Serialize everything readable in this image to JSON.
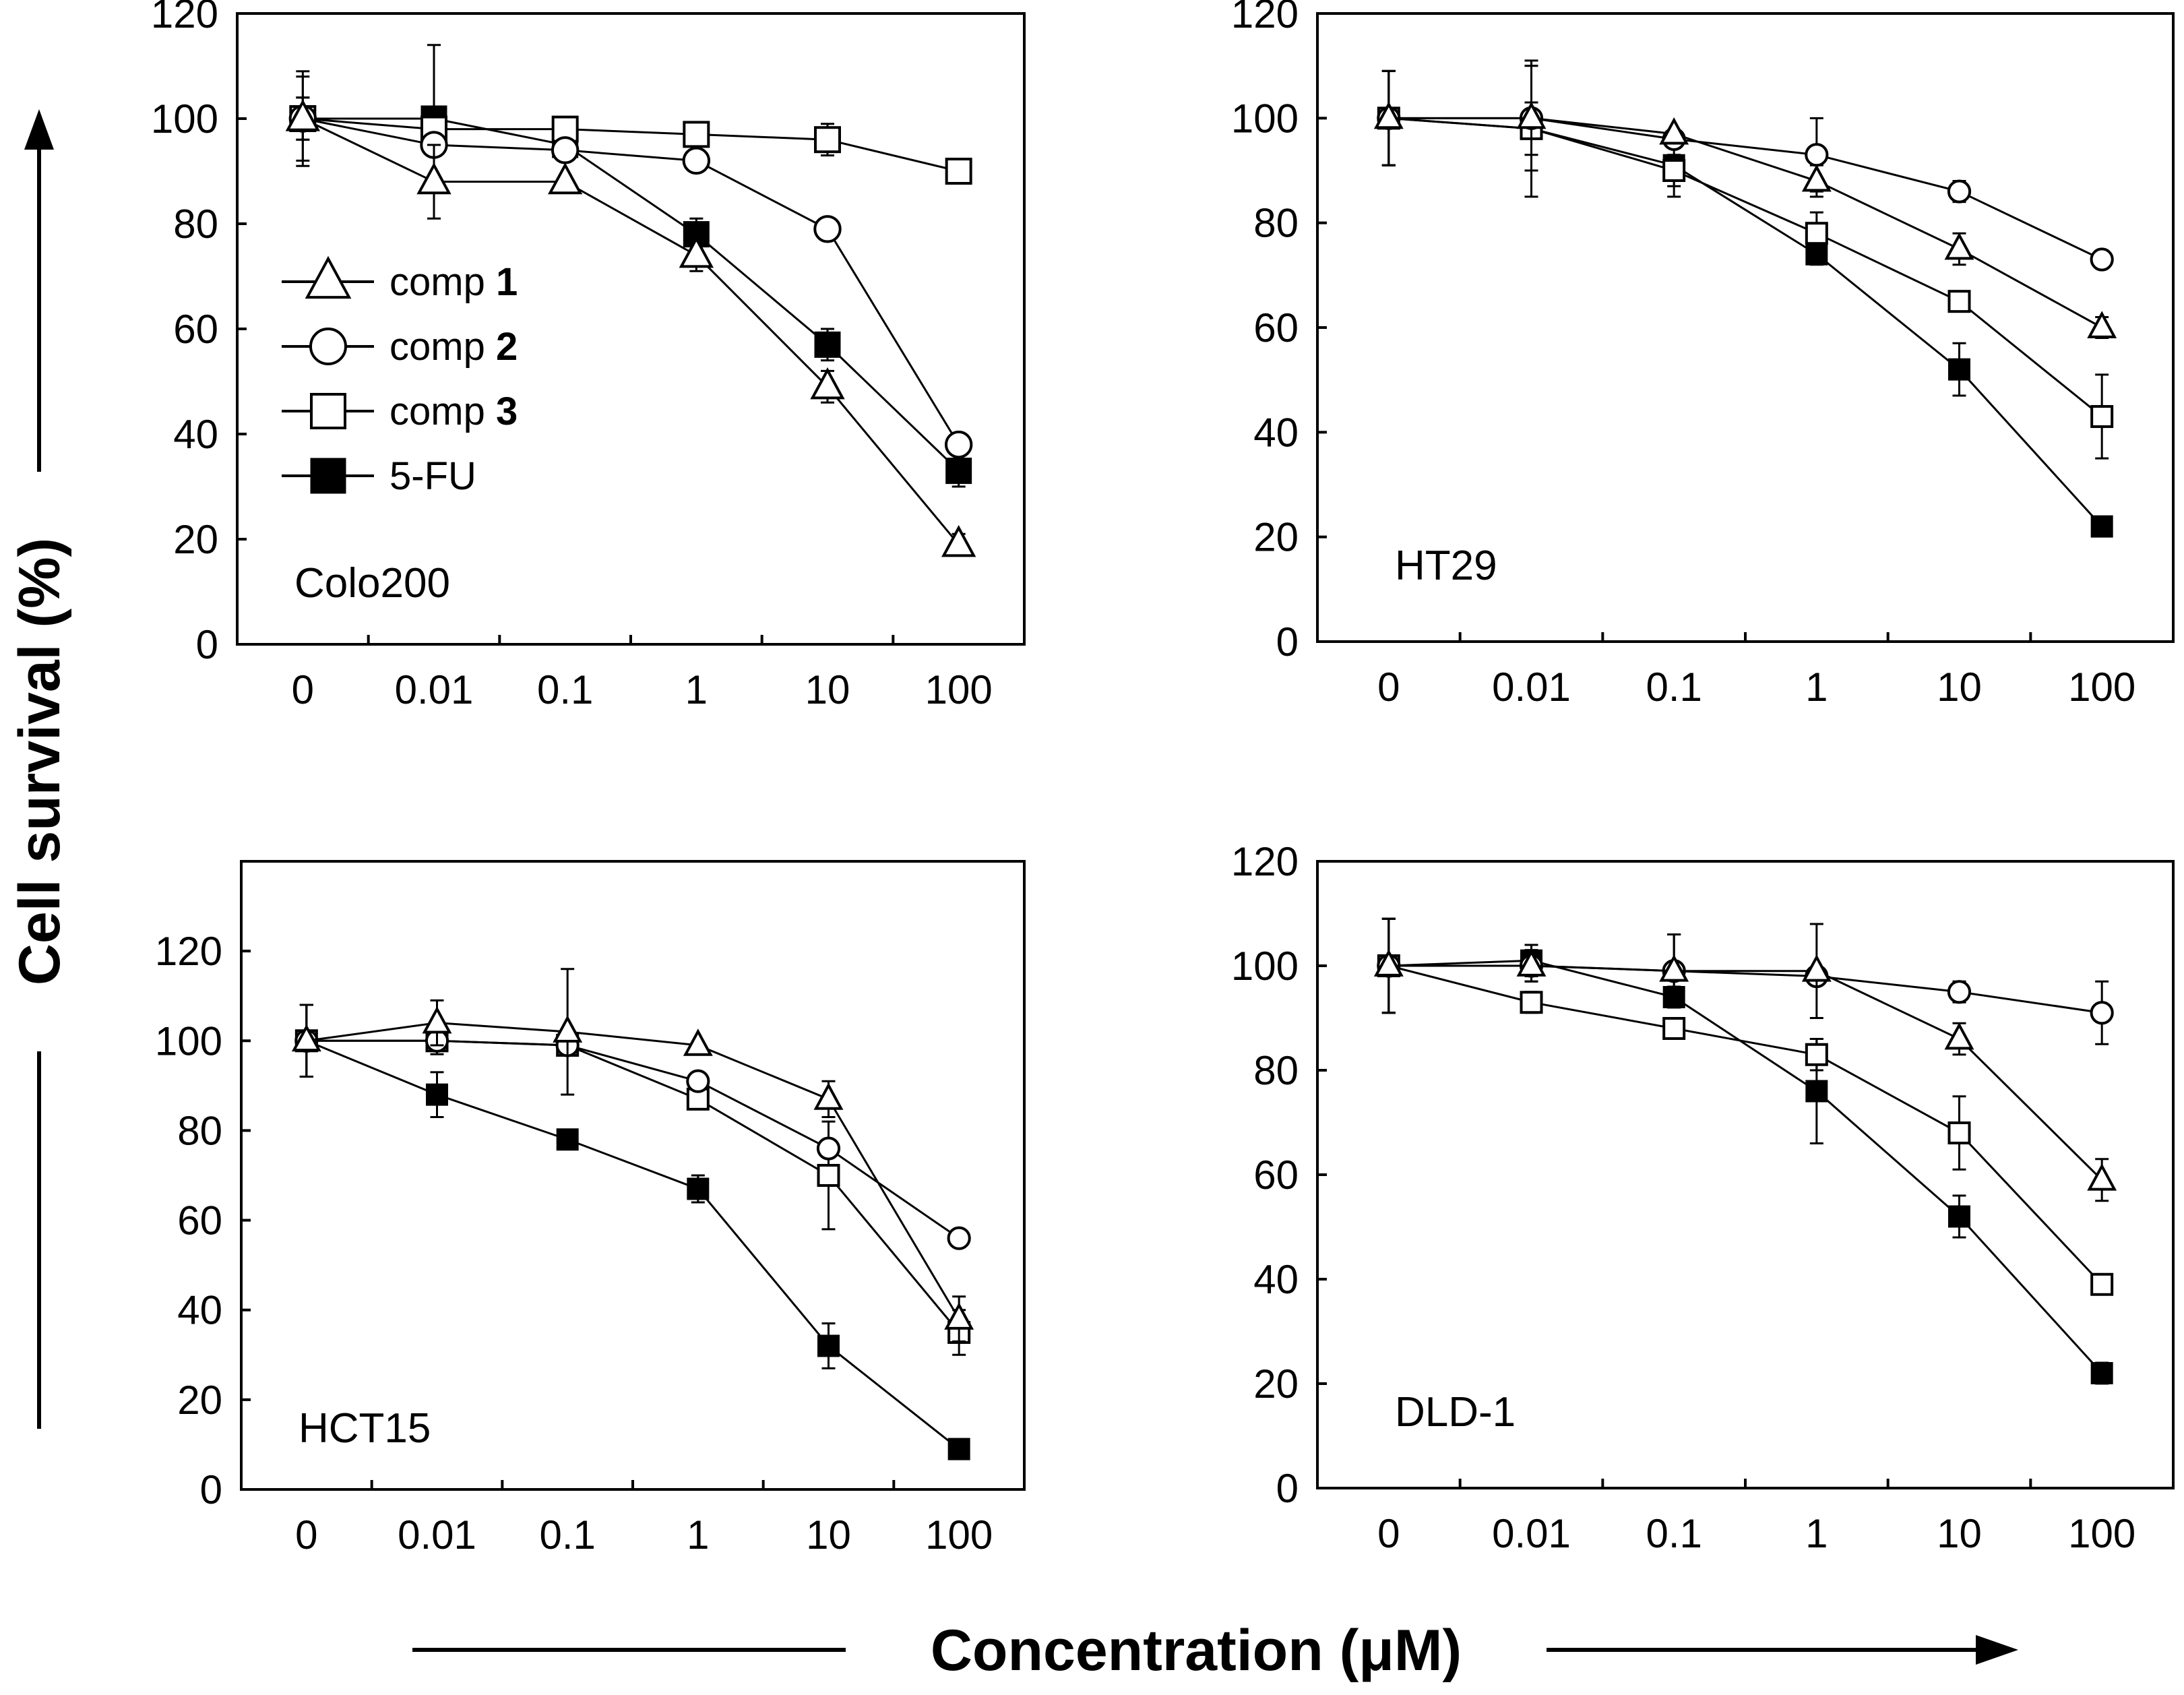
{
  "figure": {
    "ylabel": "Cell survival (%)",
    "xlabel": "Concentration (μM)"
  },
  "legend": [
    {
      "prefix": "comp ",
      "bold": "1",
      "marker": "triangle-open"
    },
    {
      "prefix": "comp ",
      "bold": "2",
      "marker": "circle-open"
    },
    {
      "prefix": "comp ",
      "bold": "3",
      "marker": "square-open"
    },
    {
      "prefix": "5-FU",
      "bold": "",
      "marker": "square-filled"
    }
  ],
  "chart_data": [
    {
      "type": "line",
      "title": "Colo200",
      "xlabel": "Concentration (μM)",
      "ylabel": "Cell survival (%)",
      "categories": [
        "0",
        "0.01",
        "0.1",
        "1",
        "10",
        "100"
      ],
      "yticks": [
        "0",
        "20",
        "40",
        "60",
        "80",
        "100",
        "120"
      ],
      "ylim": [
        0,
        120
      ],
      "series": [
        {
          "name": "comp 1",
          "marker": "triangle-open",
          "values": [
            100,
            88,
            88,
            74,
            49,
            19
          ],
          "errors": [
            8,
            7,
            0,
            3,
            3,
            2
          ]
        },
        {
          "name": "comp 2",
          "marker": "circle-open",
          "values": [
            100,
            95,
            94,
            92,
            79,
            38
          ],
          "errors": [
            4,
            0,
            0,
            0,
            0,
            0
          ]
        },
        {
          "name": "comp 3",
          "marker": "square-open",
          "values": [
            100,
            98,
            98,
            97,
            96,
            90
          ],
          "errors": [
            4,
            0,
            0,
            0,
            3,
            2
          ]
        },
        {
          "name": "5-FU",
          "marker": "square-filled",
          "values": [
            100,
            100,
            95,
            78,
            57,
            33
          ],
          "errors": [
            9,
            14,
            0,
            3,
            3,
            3
          ]
        }
      ]
    },
    {
      "type": "line",
      "title": "HT29",
      "xlabel": "Concentration (μM)",
      "ylabel": "Cell survival (%)",
      "categories": [
        "0",
        "0.01",
        "0.1",
        "1",
        "10",
        "100"
      ],
      "yticks": [
        "0",
        "20",
        "40",
        "60",
        "80",
        "100",
        "120"
      ],
      "ylim": [
        0,
        120
      ],
      "series": [
        {
          "name": "comp 1",
          "marker": "triangle-open",
          "values": [
            100,
            100,
            97,
            88,
            75,
            60
          ],
          "errors": [
            9,
            10,
            0,
            3,
            3,
            2
          ]
        },
        {
          "name": "comp 2",
          "marker": "circle-open",
          "values": [
            100,
            100,
            96,
            93,
            86,
            73
          ],
          "errors": [
            9,
            10,
            0,
            7,
            2,
            0
          ]
        },
        {
          "name": "comp 3",
          "marker": "square-open",
          "values": [
            100,
            98,
            90,
            78,
            65,
            43
          ],
          "errors": [
            9,
            5,
            3,
            4,
            0,
            8
          ]
        },
        {
          "name": "5-FU",
          "marker": "square-filled",
          "values": [
            100,
            98,
            91,
            74,
            52,
            22
          ],
          "errors": [
            9,
            13,
            6,
            2,
            5,
            0
          ]
        }
      ]
    },
    {
      "type": "line",
      "title": "HCT15",
      "xlabel": "Concentration (μM)",
      "ylabel": "Cell survival (%)",
      "categories": [
        "0",
        "0.01",
        "0.1",
        "1",
        "10",
        "100"
      ],
      "yticks": [
        "0",
        "20",
        "40",
        "60",
        "80",
        "100",
        "120"
      ],
      "ylim": [
        0,
        140
      ],
      "series": [
        {
          "name": "comp 1",
          "marker": "triangle-open",
          "values": [
            100,
            104,
            102,
            99,
            87,
            38
          ],
          "errors": [
            8,
            5,
            14,
            0,
            4,
            5
          ]
        },
        {
          "name": "comp 2",
          "marker": "circle-open",
          "values": [
            100,
            100,
            99,
            91,
            76,
            56
          ],
          "errors": [
            8,
            3,
            0,
            0,
            0,
            0
          ]
        },
        {
          "name": "comp 3",
          "marker": "square-open",
          "values": [
            100,
            100,
            99,
            87,
            70,
            35
          ],
          "errors": [
            8,
            0,
            0,
            0,
            12,
            5
          ]
        },
        {
          "name": "5-FU",
          "marker": "square-filled",
          "values": [
            100,
            88,
            78,
            67,
            32,
            9
          ],
          "errors": [
            8,
            5,
            0,
            3,
            5,
            0
          ]
        }
      ]
    },
    {
      "type": "line",
      "title": "DLD-1",
      "xlabel": "Concentration (μM)",
      "ylabel": "Cell survival (%)",
      "categories": [
        "0",
        "0.01",
        "0.1",
        "1",
        "10",
        "100"
      ],
      "yticks": [
        "0",
        "20",
        "40",
        "60",
        "80",
        "100",
        "120"
      ],
      "ylim": [
        0,
        120
      ],
      "series": [
        {
          "name": "comp 1",
          "marker": "triangle-open",
          "values": [
            100,
            100,
            99,
            99,
            86,
            59
          ],
          "errors": [
            9,
            3,
            7,
            9,
            3,
            4
          ]
        },
        {
          "name": "comp 2",
          "marker": "circle-open",
          "values": [
            100,
            100,
            99,
            98,
            95,
            91
          ],
          "errors": [
            9,
            3,
            7,
            0,
            2,
            6
          ]
        },
        {
          "name": "comp 3",
          "marker": "square-open",
          "values": [
            100,
            93,
            88,
            83,
            68,
            39
          ],
          "errors": [
            9,
            2,
            2,
            3,
            7,
            0
          ]
        },
        {
          "name": "5-FU",
          "marker": "square-filled",
          "values": [
            100,
            101,
            94,
            76,
            52,
            22
          ],
          "errors": [
            9,
            3,
            2,
            10,
            4,
            2
          ]
        }
      ]
    }
  ]
}
